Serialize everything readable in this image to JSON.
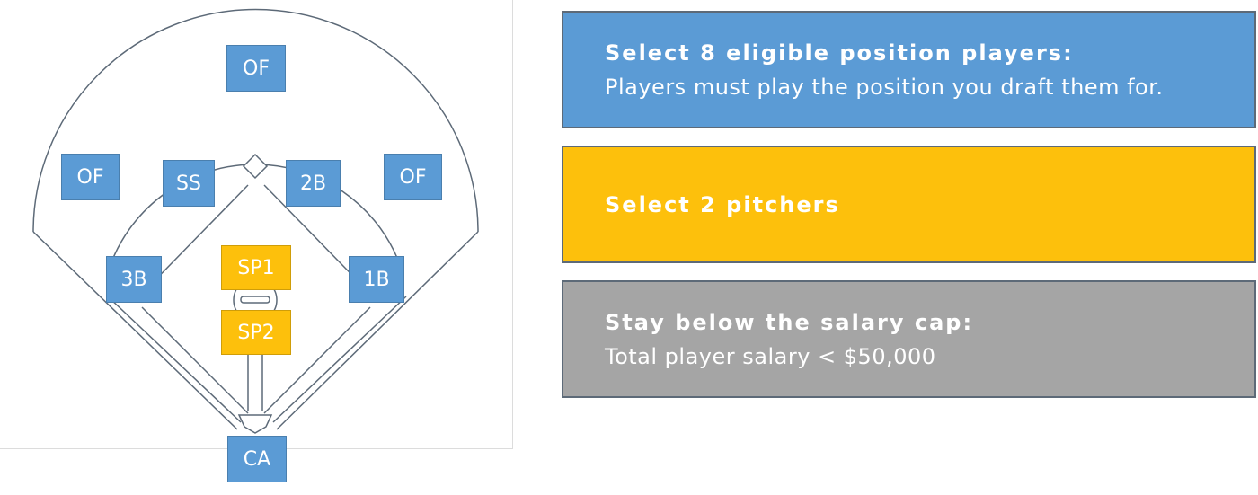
{
  "colors": {
    "blue": "#5b9bd5",
    "gold": "#fdc00c",
    "gray": "#a5a5a5",
    "line": "#5d6a78"
  },
  "field": {
    "positions": [
      {
        "id": "of-center",
        "label": "OF",
        "color": "blue"
      },
      {
        "id": "of-left",
        "label": "OF",
        "color": "blue"
      },
      {
        "id": "ss",
        "label": "SS",
        "color": "blue"
      },
      {
        "id": "2b",
        "label": "2B",
        "color": "blue"
      },
      {
        "id": "of-right",
        "label": "OF",
        "color": "blue"
      },
      {
        "id": "3b",
        "label": "3B",
        "color": "blue"
      },
      {
        "id": "1b",
        "label": "1B",
        "color": "blue"
      },
      {
        "id": "sp1",
        "label": "SP1",
        "color": "gold"
      },
      {
        "id": "sp2",
        "label": "SP2",
        "color": "gold"
      },
      {
        "id": "ca",
        "label": "CA",
        "color": "blue"
      }
    ]
  },
  "rules": [
    {
      "title": "Select 8 eligible position players:",
      "subtitle": "Players must play the position you draft them for.",
      "color": "blue"
    },
    {
      "title": "Select 2 pitchers",
      "subtitle": "",
      "color": "gold"
    },
    {
      "title": "Stay below the salary cap:",
      "subtitle": "Total player salary < $50,000",
      "color": "gray"
    }
  ]
}
